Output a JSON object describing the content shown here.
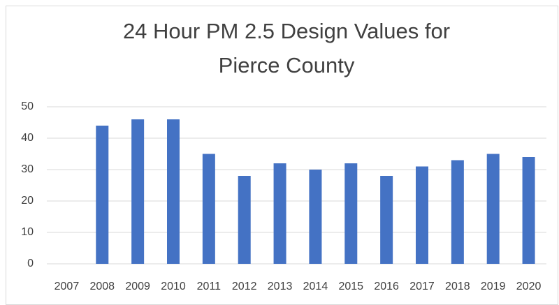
{
  "chart_data": {
    "type": "bar",
    "title": "24 Hour PM 2.5 Design Values for Pierce County",
    "categories": [
      "2007",
      "2008",
      "2009",
      "2010",
      "2011",
      "2012",
      "2013",
      "2014",
      "2015",
      "2016",
      "2017",
      "2018",
      "2019",
      "2020"
    ],
    "values": [
      null,
      44,
      46,
      46,
      35,
      28,
      32,
      30,
      32,
      28,
      31,
      33,
      35,
      34
    ],
    "color": "#4472c4",
    "ylim": [
      0,
      50
    ],
    "yticks": [
      0,
      10,
      20,
      30,
      40,
      50
    ],
    "grid": true
  }
}
